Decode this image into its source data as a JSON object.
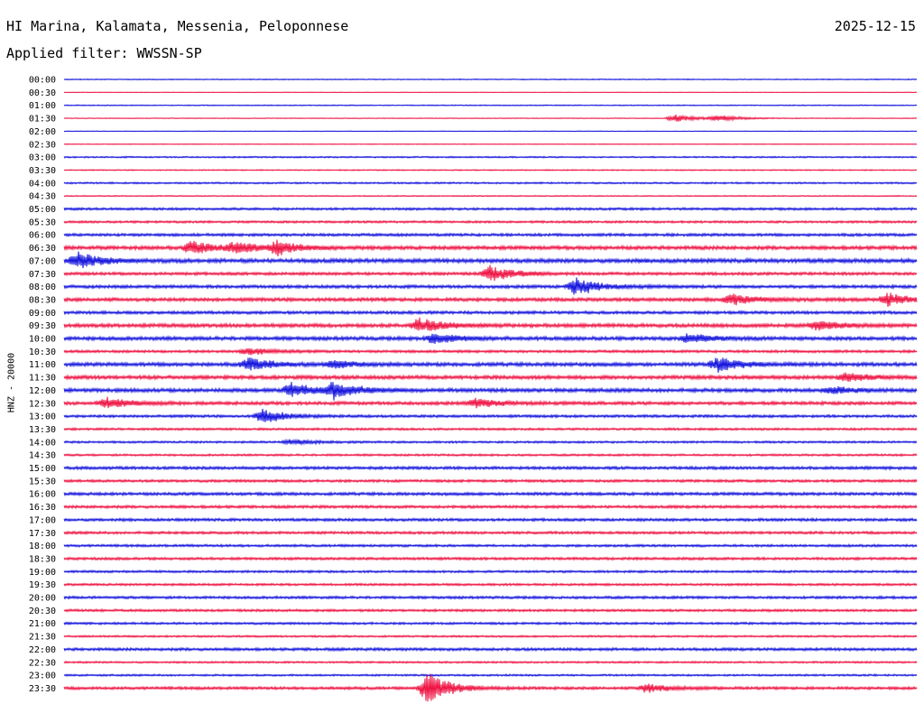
{
  "header": {
    "station": "HI Marina, Kalamata, Messenia, Peloponnese",
    "date": "2025-12-15",
    "filter": "Applied filter: WWSSN-SP"
  },
  "colors": {
    "even_row": "#1010dd",
    "odd_row": "#ee1040"
  },
  "chart_data": {
    "type": "line",
    "title": "HI Marina, Kalamata, Messenia, Peloponnese",
    "ylabel": "HNZ - 20000",
    "xlabel": "",
    "rows": [
      "00:00",
      "00:30",
      "01:00",
      "01:30",
      "02:00",
      "02:30",
      "03:00",
      "03:30",
      "04:00",
      "04:30",
      "05:00",
      "05:30",
      "06:00",
      "06:30",
      "07:00",
      "07:30",
      "08:00",
      "08:30",
      "09:00",
      "09:30",
      "10:00",
      "10:30",
      "11:00",
      "11:30",
      "12:00",
      "12:30",
      "13:00",
      "13:30",
      "14:00",
      "14:30",
      "15:00",
      "15:30",
      "16:00",
      "16:30",
      "17:00",
      "17:30",
      "18:00",
      "18:30",
      "19:00",
      "19:30",
      "20:00",
      "20:30",
      "21:00",
      "21:30",
      "22:00",
      "22:30",
      "23:00",
      "23:30"
    ],
    "noise_level": [
      0.5,
      0.3,
      0.5,
      0.4,
      0.3,
      0.4,
      0.8,
      0.6,
      0.9,
      0.6,
      1.3,
      1.2,
      1.5,
      2.0,
      2.2,
      1.6,
      1.7,
      1.9,
      1.6,
      2.0,
      2.0,
      1.4,
      2.0,
      2.0,
      2.0,
      1.8,
      1.4,
      1.2,
      1.1,
      1.1,
      1.6,
      1.4,
      1.6,
      1.5,
      1.5,
      1.4,
      1.3,
      1.4,
      1.2,
      1.2,
      1.4,
      1.3,
      1.2,
      1.0,
      1.5,
      1.0,
      1.0,
      1.5
    ],
    "events": [
      {
        "row": 3,
        "minute": 21.5,
        "amplitude": 4
      },
      {
        "row": 3,
        "minute": 23.0,
        "amplitude": 3
      },
      {
        "row": 13,
        "minute": 4.5,
        "amplitude": 7
      },
      {
        "row": 13,
        "minute": 6.0,
        "amplitude": 6
      },
      {
        "row": 13,
        "minute": 7.5,
        "amplitude": 7
      },
      {
        "row": 14,
        "minute": 0.5,
        "amplitude": 9
      },
      {
        "row": 15,
        "minute": 15.0,
        "amplitude": 9
      },
      {
        "row": 16,
        "minute": 18.0,
        "amplitude": 10
      },
      {
        "row": 17,
        "minute": 23.5,
        "amplitude": 6
      },
      {
        "row": 17,
        "minute": 29.0,
        "amplitude": 7
      },
      {
        "row": 19,
        "minute": 12.5,
        "amplitude": 8
      },
      {
        "row": 19,
        "minute": 26.5,
        "amplitude": 5
      },
      {
        "row": 20,
        "minute": 13.0,
        "amplitude": 6
      },
      {
        "row": 20,
        "minute": 22.0,
        "amplitude": 5
      },
      {
        "row": 21,
        "minute": 6.5,
        "amplitude": 4
      },
      {
        "row": 22,
        "minute": 6.5,
        "amplitude": 7
      },
      {
        "row": 22,
        "minute": 23.0,
        "amplitude": 8
      },
      {
        "row": 22,
        "minute": 9.5,
        "amplitude": 4
      },
      {
        "row": 23,
        "minute": 27.5,
        "amplitude": 5
      },
      {
        "row": 24,
        "minute": 8.0,
        "amplitude": 8
      },
      {
        "row": 24,
        "minute": 9.5,
        "amplitude": 9
      },
      {
        "row": 24,
        "minute": 27.0,
        "amplitude": 4
      },
      {
        "row": 25,
        "minute": 1.5,
        "amplitude": 6
      },
      {
        "row": 25,
        "minute": 14.5,
        "amplitude": 5
      },
      {
        "row": 26,
        "minute": 7.0,
        "amplitude": 8
      },
      {
        "row": 28,
        "minute": 8.0,
        "amplitude": 3
      },
      {
        "row": 47,
        "minute": 12.8,
        "amplitude": 18
      },
      {
        "row": 47,
        "minute": 20.5,
        "amplitude": 5
      }
    ]
  }
}
